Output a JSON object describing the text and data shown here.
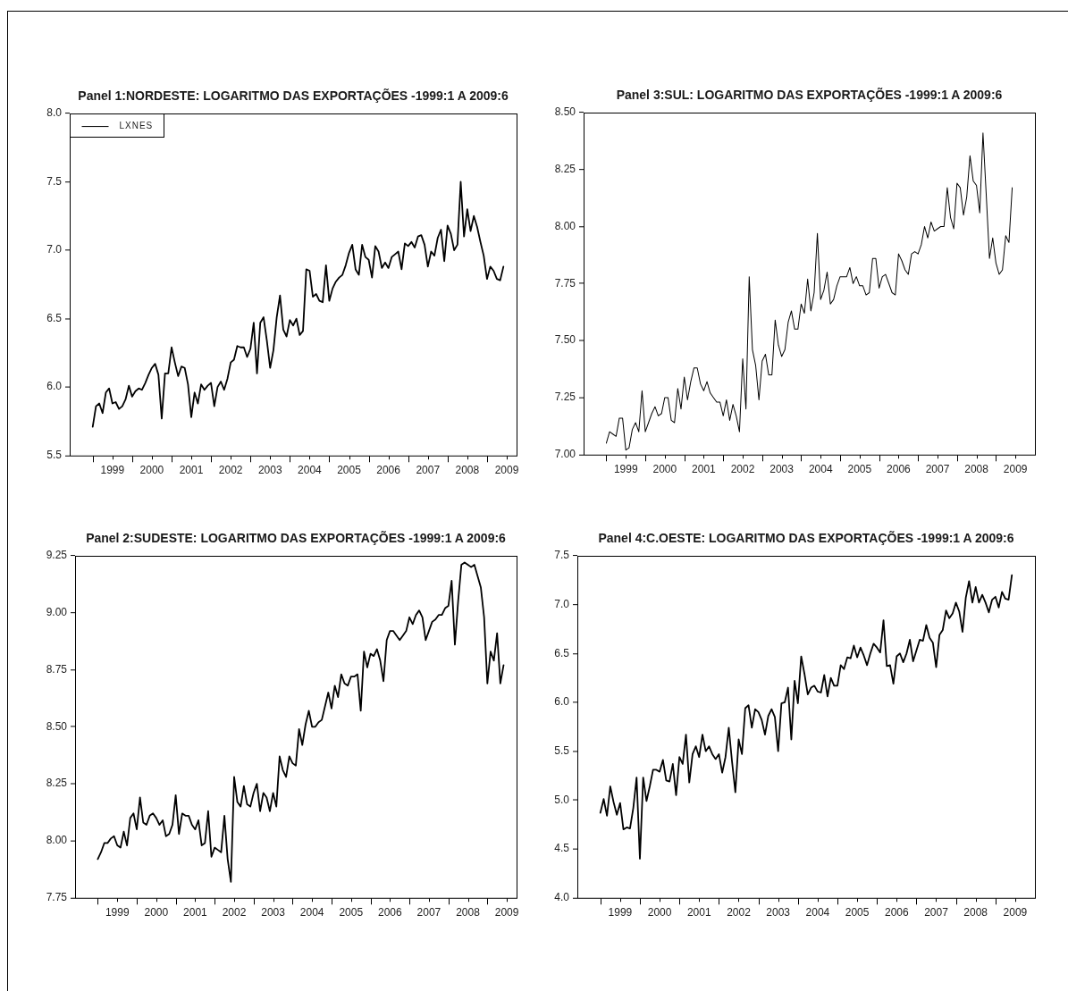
{
  "chart_data": [
    {
      "type": "line",
      "title": "Panel 1:NORDESTE: LOGARITMO DAS EXPORTAÇÕES -1999:1 A 2009:6",
      "legend": "top left",
      "x": [
        "1999-01",
        "1999-02",
        "1999-03",
        "1999-04",
        "1999-05",
        "1999-06",
        "1999-07",
        "1999-08",
        "1999-09",
        "1999-10",
        "1999-11",
        "1999-12",
        "2000-01",
        "2000-02",
        "2000-03",
        "2000-04",
        "2000-05",
        "2000-06",
        "2000-07",
        "2000-08",
        "2000-09",
        "2000-10",
        "2000-11",
        "2000-12",
        "2001-01",
        "2001-02",
        "2001-03",
        "2001-04",
        "2001-05",
        "2001-06",
        "2001-07",
        "2001-08",
        "2001-09",
        "2001-10",
        "2001-11",
        "2001-12",
        "2002-01",
        "2002-02",
        "2002-03",
        "2002-04",
        "2002-05",
        "2002-06",
        "2002-07",
        "2002-08",
        "2002-09",
        "2002-10",
        "2002-11",
        "2002-12",
        "2003-01",
        "2003-02",
        "2003-03",
        "2003-04",
        "2003-05",
        "2003-06",
        "2003-07",
        "2003-08",
        "2003-09",
        "2003-10",
        "2003-11",
        "2003-12",
        "2004-01",
        "2004-02",
        "2004-03",
        "2004-04",
        "2004-05",
        "2004-06",
        "2004-07",
        "2004-08",
        "2004-09",
        "2004-10",
        "2004-11",
        "2004-12",
        "2005-01",
        "2005-02",
        "2005-03",
        "2005-04",
        "2005-05",
        "2005-06",
        "2005-07",
        "2005-08",
        "2005-09",
        "2005-10",
        "2005-11",
        "2005-12",
        "2006-01",
        "2006-02",
        "2006-03",
        "2006-04",
        "2006-05",
        "2006-06",
        "2006-07",
        "2006-08",
        "2006-09",
        "2006-10",
        "2006-11",
        "2006-12",
        "2007-01",
        "2007-02",
        "2007-03",
        "2007-04",
        "2007-05",
        "2007-06",
        "2007-07",
        "2007-08",
        "2007-09",
        "2007-10",
        "2007-11",
        "2007-12",
        "2008-01",
        "2008-02",
        "2008-03",
        "2008-04",
        "2008-05",
        "2008-06",
        "2008-07",
        "2008-08",
        "2008-09",
        "2008-10",
        "2008-11",
        "2008-12",
        "2009-01",
        "2009-02",
        "2009-03",
        "2009-04",
        "2009-05",
        "2009-06"
      ],
      "series": [
        {
          "name": "LXNES",
          "color": "#000000",
          "values": [
            5.71,
            5.86,
            5.88,
            5.81,
            5.96,
            5.99,
            5.88,
            5.89,
            5.84,
            5.86,
            5.91,
            6.01,
            5.93,
            5.97,
            5.99,
            5.98,
            6.03,
            6.09,
            6.14,
            6.17,
            6.09,
            5.77,
            6.1,
            6.1,
            6.29,
            6.18,
            6.08,
            6.15,
            6.14,
            6.02,
            5.78,
            5.96,
            5.88,
            6.02,
            5.98,
            6.01,
            6.03,
            5.86,
            6.0,
            6.04,
            5.98,
            6.06,
            6.18,
            6.2,
            6.3,
            6.29,
            6.29,
            6.22,
            6.28,
            6.47,
            6.1,
            6.47,
            6.51,
            6.34,
            6.14,
            6.27,
            6.51,
            6.67,
            6.42,
            6.37,
            6.49,
            6.45,
            6.5,
            6.38,
            6.41,
            6.86,
            6.85,
            6.66,
            6.68,
            6.63,
            6.62,
            6.89,
            6.63,
            6.72,
            6.77,
            6.8,
            6.82,
            6.89,
            6.98,
            7.04,
            6.86,
            6.82,
            7.04,
            6.95,
            6.93,
            6.8,
            7.03,
            6.99,
            6.87,
            6.91,
            6.87,
            6.95,
            6.97,
            6.99,
            6.86,
            7.05,
            7.03,
            7.06,
            7.02,
            7.1,
            7.11,
            7.04,
            6.88,
            6.99,
            6.96,
            7.09,
            7.15,
            6.92,
            7.18,
            7.12,
            7.0,
            7.04,
            7.5,
            7.1,
            7.3,
            7.14,
            7.25,
            7.17,
            7.06,
            6.96,
            6.79,
            6.88,
            6.85,
            6.79,
            6.78,
            6.88
          ]
        }
      ],
      "xlim": [
        "1998-06",
        "2009-10"
      ],
      "xticks": [
        {
          "value": "1999-01",
          "label": null
        },
        {
          "value": "1999-07",
          "label": "1999"
        },
        {
          "value": "2000-01",
          "label": null
        },
        {
          "value": "2000-07",
          "label": "2000"
        },
        {
          "value": "2001-01",
          "label": null
        },
        {
          "value": "2001-07",
          "label": "2001"
        },
        {
          "value": "2002-01",
          "label": null
        },
        {
          "value": "2002-07",
          "label": "2002"
        },
        {
          "value": "2003-01",
          "label": null
        },
        {
          "value": "2003-07",
          "label": "2003"
        },
        {
          "value": "2004-01",
          "label": null
        },
        {
          "value": "2004-07",
          "label": "2004"
        },
        {
          "value": "2005-01",
          "label": null
        },
        {
          "value": "2005-07",
          "label": "2005"
        },
        {
          "value": "2006-01",
          "label": null
        },
        {
          "value": "2006-07",
          "label": "2006"
        },
        {
          "value": "2007-01",
          "label": null
        },
        {
          "value": "2007-07",
          "label": "2007"
        },
        {
          "value": "2008-01",
          "label": null
        },
        {
          "value": "2008-07",
          "label": "2008"
        },
        {
          "value": "2009-01",
          "label": null
        },
        {
          "value": "2009-07",
          "label": "2009"
        }
      ],
      "ylim": [
        5.5,
        8
      ],
      "yticks": [
        {
          "value": 5.5,
          "label": "5.5"
        },
        {
          "value": 6,
          "label": "6.0"
        },
        {
          "value": 6.5,
          "label": "6.5"
        },
        {
          "value": 7,
          "label": "7.0"
        },
        {
          "value": 7.5,
          "label": "7.5"
        },
        {
          "value": 8,
          "label": "8.0"
        }
      ]
    },
    {
      "type": "line",
      "title": "Panel 3:SUL: LOGARITMO DAS EXPORTAÇÕES -1999:1 A 2009:6",
      "x": [
        "1999-01",
        "1999-02",
        "1999-03",
        "1999-04",
        "1999-05",
        "1999-06",
        "1999-07",
        "1999-08",
        "1999-09",
        "1999-10",
        "1999-11",
        "1999-12",
        "2000-01",
        "2000-02",
        "2000-03",
        "2000-04",
        "2000-05",
        "2000-06",
        "2000-07",
        "2000-08",
        "2000-09",
        "2000-10",
        "2000-11",
        "2000-12",
        "2001-01",
        "2001-02",
        "2001-03",
        "2001-04",
        "2001-05",
        "2001-06",
        "2001-07",
        "2001-08",
        "2001-09",
        "2001-10",
        "2001-11",
        "2001-12",
        "2002-01",
        "2002-02",
        "2002-03",
        "2002-04",
        "2002-05",
        "2002-06",
        "2002-07",
        "2002-08",
        "2002-09",
        "2002-10",
        "2002-11",
        "2002-12",
        "2003-01",
        "2003-02",
        "2003-03",
        "2003-04",
        "2003-05",
        "2003-06",
        "2003-07",
        "2003-08",
        "2003-09",
        "2003-10",
        "2003-11",
        "2003-12",
        "2004-01",
        "2004-02",
        "2004-03",
        "2004-04",
        "2004-05",
        "2004-06",
        "2004-07",
        "2004-08",
        "2004-09",
        "2004-10",
        "2004-11",
        "2004-12",
        "2005-01",
        "2005-02",
        "2005-03",
        "2005-04",
        "2005-05",
        "2005-06",
        "2005-07",
        "2005-08",
        "2005-09",
        "2005-10",
        "2005-11",
        "2005-12",
        "2006-01",
        "2006-02",
        "2006-03",
        "2006-04",
        "2006-05",
        "2006-06",
        "2006-07",
        "2006-08",
        "2006-09",
        "2006-10",
        "2006-11",
        "2006-12",
        "2007-01",
        "2007-02",
        "2007-03",
        "2007-04",
        "2007-05",
        "2007-06",
        "2007-07",
        "2007-08",
        "2007-09",
        "2007-10",
        "2007-11",
        "2007-12",
        "2008-01",
        "2008-02",
        "2008-03",
        "2008-04",
        "2008-05",
        "2008-06",
        "2008-07",
        "2008-08",
        "2008-09",
        "2008-10",
        "2008-11",
        "2008-12",
        "2009-01",
        "2009-02",
        "2009-03",
        "2009-04",
        "2009-05",
        "2009-06"
      ],
      "series": [
        {
          "color": "#000000",
          "values": [
            7.05,
            7.1,
            7.09,
            7.08,
            7.16,
            7.16,
            7.02,
            7.03,
            7.11,
            7.14,
            7.1,
            7.28,
            7.1,
            7.14,
            7.18,
            7.21,
            7.17,
            7.18,
            7.25,
            7.25,
            7.15,
            7.14,
            7.29,
            7.2,
            7.34,
            7.24,
            7.32,
            7.38,
            7.38,
            7.31,
            7.28,
            7.32,
            7.27,
            7.25,
            7.23,
            7.23,
            7.17,
            7.24,
            7.15,
            7.22,
            7.17,
            7.1,
            7.42,
            7.2,
            7.78,
            7.46,
            7.39,
            7.24,
            7.41,
            7.44,
            7.35,
            7.35,
            7.59,
            7.48,
            7.43,
            7.46,
            7.58,
            7.63,
            7.55,
            7.55,
            7.66,
            7.62,
            7.77,
            7.63,
            7.71,
            7.97,
            7.68,
            7.72,
            7.8,
            7.66,
            7.68,
            7.74,
            7.78,
            7.78,
            7.78,
            7.82,
            7.75,
            7.78,
            7.74,
            7.74,
            7.7,
            7.71,
            7.86,
            7.86,
            7.73,
            7.78,
            7.79,
            7.75,
            7.71,
            7.7,
            7.88,
            7.85,
            7.81,
            7.79,
            7.88,
            7.89,
            7.88,
            7.92,
            8.0,
            7.95,
            8.02,
            7.98,
            7.99,
            8.0,
            8.0,
            8.17,
            8.04,
            7.99,
            8.19,
            8.17,
            8.05,
            8.13,
            8.31,
            8.2,
            8.18,
            8.06,
            8.41,
            8.14,
            7.86,
            7.95,
            7.84,
            7.79,
            7.81,
            7.96,
            7.93,
            8.17
          ]
        }
      ],
      "xlim": [
        "1998-06",
        "2010-01"
      ],
      "xticks": [
        {
          "value": "1999-01",
          "label": null
        },
        {
          "value": "1999-07",
          "label": "1999"
        },
        {
          "value": "2000-01",
          "label": null
        },
        {
          "value": "2000-07",
          "label": "2000"
        },
        {
          "value": "2001-01",
          "label": null
        },
        {
          "value": "2001-07",
          "label": "2001"
        },
        {
          "value": "2002-01",
          "label": null
        },
        {
          "value": "2002-07",
          "label": "2002"
        },
        {
          "value": "2003-01",
          "label": null
        },
        {
          "value": "2003-07",
          "label": "2003"
        },
        {
          "value": "2004-01",
          "label": null
        },
        {
          "value": "2004-07",
          "label": "2004"
        },
        {
          "value": "2005-01",
          "label": null
        },
        {
          "value": "2005-07",
          "label": "2005"
        },
        {
          "value": "2006-01",
          "label": null
        },
        {
          "value": "2006-07",
          "label": "2006"
        },
        {
          "value": "2007-01",
          "label": null
        },
        {
          "value": "2007-07",
          "label": "2007"
        },
        {
          "value": "2008-01",
          "label": null
        },
        {
          "value": "2008-07",
          "label": "2008"
        },
        {
          "value": "2009-01",
          "label": null
        },
        {
          "value": "2009-07",
          "label": "2009"
        }
      ],
      "ylim": [
        7,
        8.5
      ],
      "yticks": [
        {
          "value": 7,
          "label": "7.00"
        },
        {
          "value": 7.25,
          "label": "7.25"
        },
        {
          "value": 7.5,
          "label": "7.50"
        },
        {
          "value": 7.75,
          "label": "7.75"
        },
        {
          "value": 8,
          "label": "8.00"
        },
        {
          "value": 8.25,
          "label": "8.25"
        },
        {
          "value": 8.5,
          "label": "8.50"
        }
      ]
    },
    {
      "type": "line",
      "title": "Panel 2:SUDESTE: LOGARITMO DAS EXPORTAÇÕES -1999:1 A 2009:6",
      "x": [
        "1999-01",
        "1999-02",
        "1999-03",
        "1999-04",
        "1999-05",
        "1999-06",
        "1999-07",
        "1999-08",
        "1999-09",
        "1999-10",
        "1999-11",
        "1999-12",
        "2000-01",
        "2000-02",
        "2000-03",
        "2000-04",
        "2000-05",
        "2000-06",
        "2000-07",
        "2000-08",
        "2000-09",
        "2000-10",
        "2000-11",
        "2000-12",
        "2001-01",
        "2001-02",
        "2001-03",
        "2001-04",
        "2001-05",
        "2001-06",
        "2001-07",
        "2001-08",
        "2001-09",
        "2001-10",
        "2001-11",
        "2001-12",
        "2002-01",
        "2002-02",
        "2002-03",
        "2002-04",
        "2002-05",
        "2002-06",
        "2002-07",
        "2002-08",
        "2002-09",
        "2002-10",
        "2002-11",
        "2002-12",
        "2003-01",
        "2003-02",
        "2003-03",
        "2003-04",
        "2003-05",
        "2003-06",
        "2003-07",
        "2003-08",
        "2003-09",
        "2003-10",
        "2003-11",
        "2003-12",
        "2004-01",
        "2004-02",
        "2004-03",
        "2004-04",
        "2004-05",
        "2004-06",
        "2004-07",
        "2004-08",
        "2004-09",
        "2004-10",
        "2004-11",
        "2004-12",
        "2005-01",
        "2005-02",
        "2005-03",
        "2005-04",
        "2005-05",
        "2005-06",
        "2005-07",
        "2005-08",
        "2005-09",
        "2005-10",
        "2005-11",
        "2005-12",
        "2006-01",
        "2006-02",
        "2006-03",
        "2006-04",
        "2006-05",
        "2006-06",
        "2006-07",
        "2006-08",
        "2006-09",
        "2006-10",
        "2006-11",
        "2006-12",
        "2007-01",
        "2007-02",
        "2007-03",
        "2007-04",
        "2007-05",
        "2007-06",
        "2007-07",
        "2007-08",
        "2007-09",
        "2007-10",
        "2007-11",
        "2007-12",
        "2008-01",
        "2008-02",
        "2008-03",
        "2008-04",
        "2008-05",
        "2008-06",
        "2008-07",
        "2008-08",
        "2008-09",
        "2008-10",
        "2008-11",
        "2008-12",
        "2009-01",
        "2009-02",
        "2009-03",
        "2009-04",
        "2009-05",
        "2009-06"
      ],
      "series": [
        {
          "color": "#000000",
          "values": [
            7.92,
            7.95,
            7.99,
            7.99,
            8.01,
            8.02,
            7.98,
            7.97,
            8.04,
            7.98,
            8.1,
            8.12,
            8.05,
            8.19,
            8.08,
            8.07,
            8.11,
            8.12,
            8.1,
            8.07,
            8.09,
            8.02,
            8.03,
            8.07,
            8.2,
            8.03,
            8.12,
            8.11,
            8.11,
            8.07,
            8.05,
            8.09,
            7.98,
            7.99,
            8.13,
            7.93,
            7.97,
            7.96,
            7.95,
            8.11,
            7.92,
            7.82,
            8.28,
            8.17,
            8.15,
            8.24,
            8.16,
            8.15,
            8.21,
            8.25,
            8.13,
            8.21,
            8.19,
            8.13,
            8.21,
            8.15,
            8.37,
            8.31,
            8.28,
            8.37,
            8.34,
            8.33,
            8.49,
            8.42,
            8.51,
            8.57,
            8.5,
            8.5,
            8.52,
            8.53,
            8.59,
            8.65,
            8.58,
            8.68,
            8.63,
            8.73,
            8.69,
            8.68,
            8.72,
            8.72,
            8.73,
            8.57,
            8.83,
            8.76,
            8.82,
            8.81,
            8.84,
            8.79,
            8.7,
            8.88,
            8.92,
            8.92,
            8.9,
            8.88,
            8.9,
            8.92,
            8.98,
            8.95,
            8.99,
            9.01,
            8.98,
            8.88,
            8.92,
            8.96,
            8.97,
            8.99,
            8.99,
            9.02,
            9.03,
            9.14,
            8.86,
            9.05,
            9.21,
            9.22,
            9.21,
            9.2,
            9.21,
            9.16,
            9.11,
            8.98,
            8.69,
            8.83,
            8.79,
            8.91,
            8.69,
            8.77
          ]
        }
      ],
      "xlim": [
        "1998-06",
        "2009-10"
      ],
      "xticks": [
        {
          "value": "1999-01",
          "label": null
        },
        {
          "value": "1999-07",
          "label": "1999"
        },
        {
          "value": "2000-01",
          "label": null
        },
        {
          "value": "2000-07",
          "label": "2000"
        },
        {
          "value": "2001-01",
          "label": null
        },
        {
          "value": "2001-07",
          "label": "2001"
        },
        {
          "value": "2002-01",
          "label": null
        },
        {
          "value": "2002-07",
          "label": "2002"
        },
        {
          "value": "2003-01",
          "label": null
        },
        {
          "value": "2003-07",
          "label": "2003"
        },
        {
          "value": "2004-01",
          "label": null
        },
        {
          "value": "2004-07",
          "label": "2004"
        },
        {
          "value": "2005-01",
          "label": null
        },
        {
          "value": "2005-07",
          "label": "2005"
        },
        {
          "value": "2006-01",
          "label": null
        },
        {
          "value": "2006-07",
          "label": "2006"
        },
        {
          "value": "2007-01",
          "label": null
        },
        {
          "value": "2007-07",
          "label": "2007"
        },
        {
          "value": "2008-01",
          "label": null
        },
        {
          "value": "2008-07",
          "label": "2008"
        },
        {
          "value": "2009-01",
          "label": null
        },
        {
          "value": "2009-07",
          "label": "2009"
        }
      ],
      "ylim": [
        7.75,
        9.25
      ],
      "yticks": [
        {
          "value": 7.75,
          "label": "7.75"
        },
        {
          "value": 8,
          "label": "8.00"
        },
        {
          "value": 8.25,
          "label": "8.25"
        },
        {
          "value": 8.5,
          "label": "8.50"
        },
        {
          "value": 8.75,
          "label": "8.75"
        },
        {
          "value": 9,
          "label": "9.00"
        },
        {
          "value": 9.25,
          "label": "9.25"
        }
      ]
    },
    {
      "type": "line",
      "title": "Panel 4:C.OESTE: LOGARITMO DAS EXPORTAÇÕES -1999:1 A 2009:6",
      "x": [
        "1999-01",
        "1999-02",
        "1999-03",
        "1999-04",
        "1999-05",
        "1999-06",
        "1999-07",
        "1999-08",
        "1999-09",
        "1999-10",
        "1999-11",
        "1999-12",
        "2000-01",
        "2000-02",
        "2000-03",
        "2000-04",
        "2000-05",
        "2000-06",
        "2000-07",
        "2000-08",
        "2000-09",
        "2000-10",
        "2000-11",
        "2000-12",
        "2001-01",
        "2001-02",
        "2001-03",
        "2001-04",
        "2001-05",
        "2001-06",
        "2001-07",
        "2001-08",
        "2001-09",
        "2001-10",
        "2001-11",
        "2001-12",
        "2002-01",
        "2002-02",
        "2002-03",
        "2002-04",
        "2002-05",
        "2002-06",
        "2002-07",
        "2002-08",
        "2002-09",
        "2002-10",
        "2002-11",
        "2002-12",
        "2003-01",
        "2003-02",
        "2003-03",
        "2003-04",
        "2003-05",
        "2003-06",
        "2003-07",
        "2003-08",
        "2003-09",
        "2003-10",
        "2003-11",
        "2003-12",
        "2004-01",
        "2004-02",
        "2004-03",
        "2004-04",
        "2004-05",
        "2004-06",
        "2004-07",
        "2004-08",
        "2004-09",
        "2004-10",
        "2004-11",
        "2004-12",
        "2005-01",
        "2005-02",
        "2005-03",
        "2005-04",
        "2005-05",
        "2005-06",
        "2005-07",
        "2005-08",
        "2005-09",
        "2005-10",
        "2005-11",
        "2005-12",
        "2006-01",
        "2006-02",
        "2006-03",
        "2006-04",
        "2006-05",
        "2006-06",
        "2006-07",
        "2006-08",
        "2006-09",
        "2006-10",
        "2006-11",
        "2006-12",
        "2007-01",
        "2007-02",
        "2007-03",
        "2007-04",
        "2007-05",
        "2007-06",
        "2007-07",
        "2007-08",
        "2007-09",
        "2007-10",
        "2007-11",
        "2007-12",
        "2008-01",
        "2008-02",
        "2008-03",
        "2008-04",
        "2008-05",
        "2008-06",
        "2008-07",
        "2008-08",
        "2008-09",
        "2008-10",
        "2008-11",
        "2008-12",
        "2009-01",
        "2009-02",
        "2009-03",
        "2009-04",
        "2009-05",
        "2009-06"
      ],
      "series": [
        {
          "color": "#000000",
          "values": [
            4.87,
            5.01,
            4.84,
            5.14,
            4.98,
            4.85,
            4.97,
            4.7,
            4.72,
            4.71,
            4.92,
            5.23,
            4.4,
            5.23,
            4.99,
            5.14,
            5.31,
            5.31,
            5.29,
            5.41,
            5.2,
            5.19,
            5.37,
            5.05,
            5.44,
            5.37,
            5.67,
            5.18,
            5.47,
            5.55,
            5.44,
            5.67,
            5.5,
            5.55,
            5.47,
            5.42,
            5.47,
            5.28,
            5.44,
            5.74,
            5.39,
            5.08,
            5.62,
            5.47,
            5.94,
            5.97,
            5.74,
            5.93,
            5.9,
            5.82,
            5.67,
            5.86,
            5.93,
            5.85,
            5.5,
            5.99,
            6.0,
            6.15,
            5.62,
            6.22,
            5.99,
            6.47,
            6.29,
            6.08,
            6.15,
            6.17,
            6.11,
            6.1,
            6.28,
            6.06,
            6.25,
            6.17,
            6.17,
            6.38,
            6.34,
            6.46,
            6.45,
            6.58,
            6.46,
            6.56,
            6.48,
            6.38,
            6.5,
            6.6,
            6.56,
            6.51,
            6.84,
            6.37,
            6.38,
            6.19,
            6.47,
            6.5,
            6.41,
            6.5,
            6.64,
            6.42,
            6.53,
            6.64,
            6.63,
            6.79,
            6.66,
            6.61,
            6.36,
            6.69,
            6.74,
            6.94,
            6.86,
            6.91,
            7.02,
            6.93,
            6.72,
            7.07,
            7.24,
            7.02,
            7.18,
            7.02,
            7.1,
            7.02,
            6.92,
            7.05,
            7.08,
            6.97,
            7.13,
            7.06,
            7.05,
            7.3
          ]
        }
      ],
      "xlim": [
        "1998-06",
        "2010-01"
      ],
      "xticks": [
        {
          "value": "1999-01",
          "label": null
        },
        {
          "value": "1999-07",
          "label": "1999"
        },
        {
          "value": "2000-01",
          "label": null
        },
        {
          "value": "2000-07",
          "label": "2000"
        },
        {
          "value": "2001-01",
          "label": null
        },
        {
          "value": "2001-07",
          "label": "2001"
        },
        {
          "value": "2002-01",
          "label": null
        },
        {
          "value": "2002-07",
          "label": "2002"
        },
        {
          "value": "2003-01",
          "label": null
        },
        {
          "value": "2003-07",
          "label": "2003"
        },
        {
          "value": "2004-01",
          "label": null
        },
        {
          "value": "2004-07",
          "label": "2004"
        },
        {
          "value": "2005-01",
          "label": null
        },
        {
          "value": "2005-07",
          "label": "2005"
        },
        {
          "value": "2006-01",
          "label": null
        },
        {
          "value": "2006-07",
          "label": "2006"
        },
        {
          "value": "2007-01",
          "label": null
        },
        {
          "value": "2007-07",
          "label": "2007"
        },
        {
          "value": "2008-01",
          "label": null
        },
        {
          "value": "2008-07",
          "label": "2008"
        },
        {
          "value": "2009-01",
          "label": null
        },
        {
          "value": "2009-07",
          "label": "2009"
        }
      ],
      "ylim": [
        4,
        7.5
      ],
      "yticks": [
        {
          "value": 4,
          "label": "4.0"
        },
        {
          "value": 4.5,
          "label": "4.5"
        },
        {
          "value": 5,
          "label": "5.0"
        },
        {
          "value": 5.5,
          "label": "5.5"
        },
        {
          "value": 6,
          "label": "6.0"
        },
        {
          "value": 6.5,
          "label": "6.5"
        },
        {
          "value": 7,
          "label": "7.0"
        },
        {
          "value": 7.5,
          "label": "7.5"
        }
      ]
    }
  ]
}
